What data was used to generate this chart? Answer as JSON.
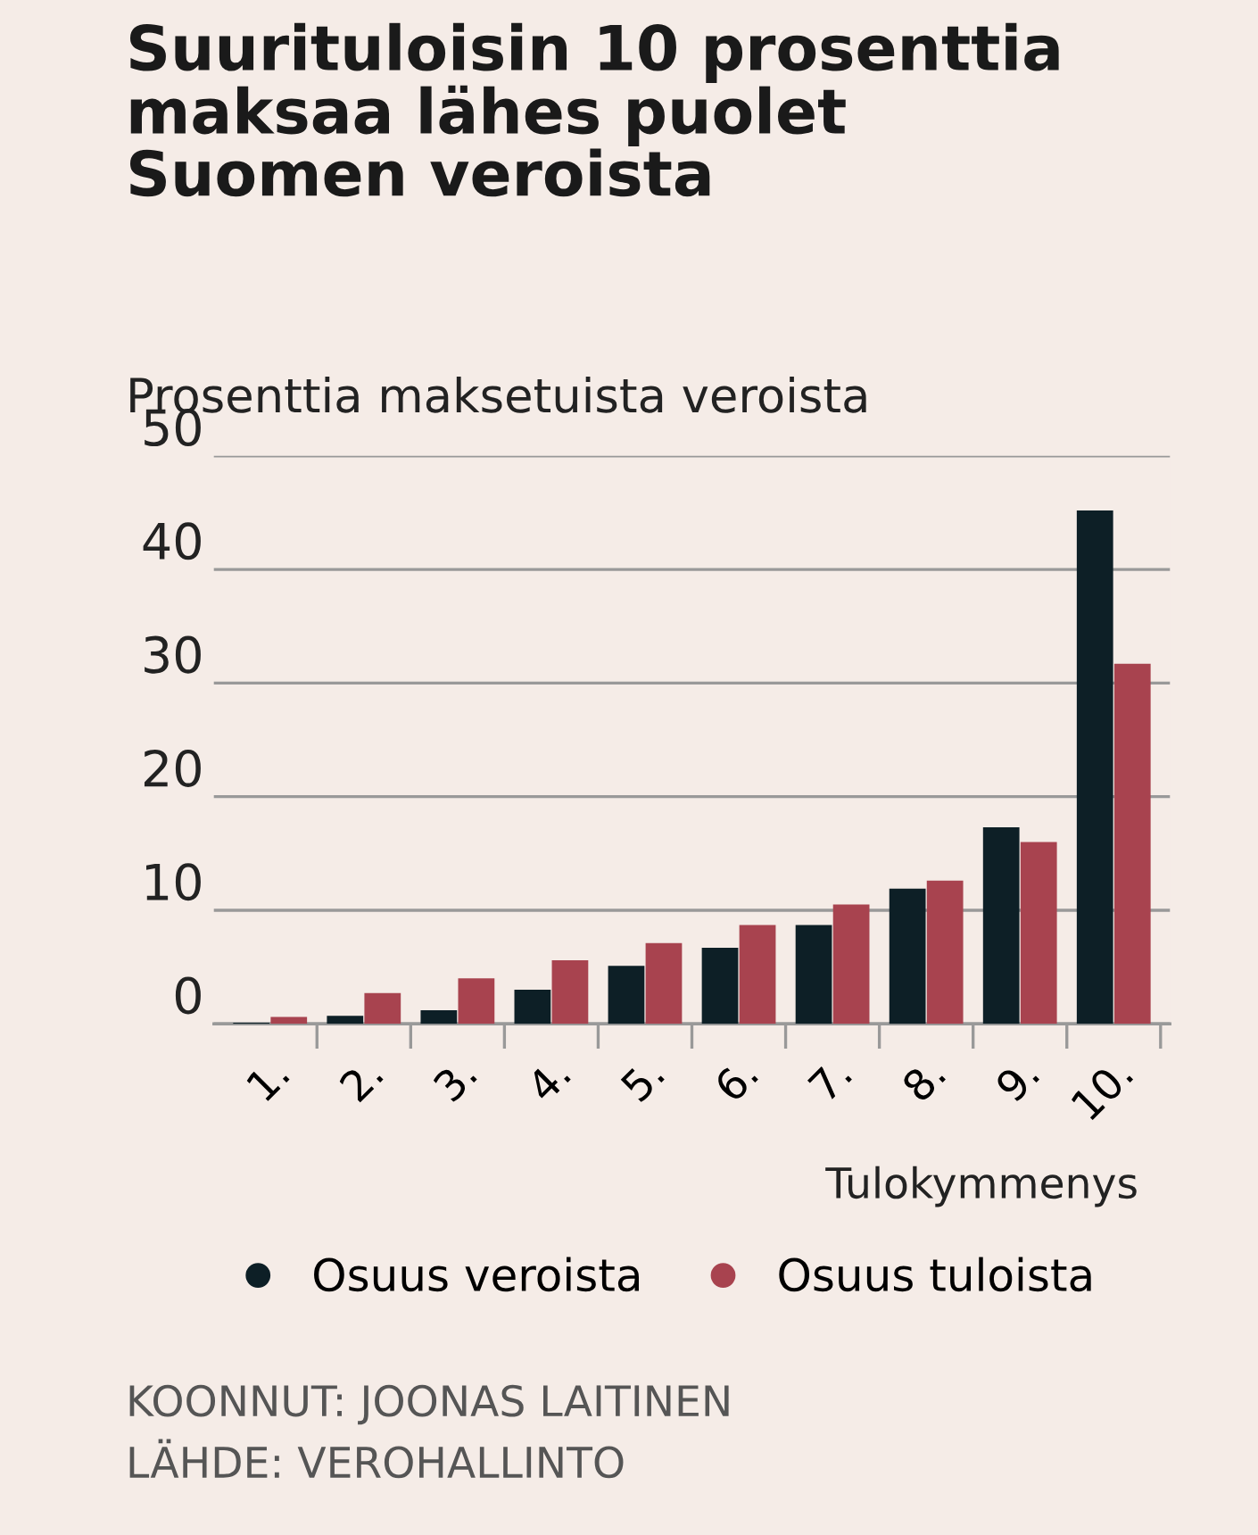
{
  "chart_data": {
    "type": "bar",
    "title": "Suurituloisin 10 prosenttia\nmaksaa lähes puolet\nSuomen veroista",
    "ylabel": "Prosenttia maksetuista veroista",
    "xlabel": "Tulokymmenys",
    "categories": [
      "1.",
      "2.",
      "3.",
      "4.",
      "5.",
      "6.",
      "7.",
      "8.",
      "9.",
      "10."
    ],
    "series": [
      {
        "name": "Osuus veroista",
        "color": "#0d1f26",
        "values": [
          0.1,
          0.7,
          1.2,
          3.0,
          5.1,
          6.7,
          8.7,
          11.9,
          17.3,
          45.2
        ]
      },
      {
        "name": "Osuus tuloista",
        "color": "#a8434f",
        "values": [
          0.6,
          2.7,
          4.0,
          5.6,
          7.1,
          8.7,
          10.5,
          12.6,
          16.0,
          31.7
        ]
      }
    ],
    "ylim": [
      0,
      50
    ],
    "yticks": [
      0,
      10,
      20,
      30,
      40,
      50
    ],
    "grid": "y",
    "legend": "bottom",
    "annotations": [
      "KOONNUT: JOONAS LAITINEN",
      "LÄHDE: VEROHALLINTO"
    ]
  }
}
